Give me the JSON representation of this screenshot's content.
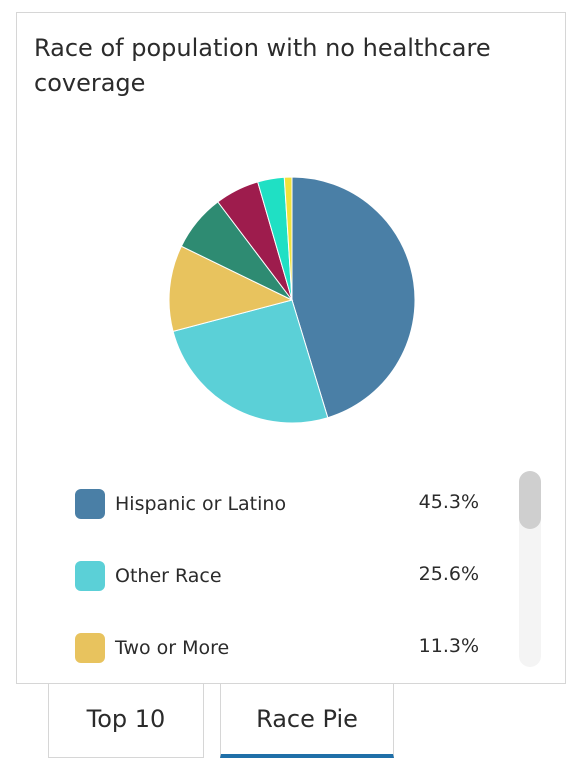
{
  "card": {
    "title": "Race of population with no healthcare coverage"
  },
  "chart_data": {
    "type": "pie",
    "title": "Race of population with no healthcare coverage",
    "slices": [
      {
        "label": "Hispanic or Latino",
        "value": 45.3,
        "display": "45.3%",
        "color": "#4a7fa6"
      },
      {
        "label": "Other Race",
        "value": 25.6,
        "display": "25.6%",
        "color": "#5bd0d7"
      },
      {
        "label": "Two or More",
        "value": 11.3,
        "display": "11.3%",
        "color": "#e8c35e"
      },
      {
        "label": "",
        "value": 7.5,
        "display": "",
        "color": "#2e8b72"
      },
      {
        "label": "",
        "value": 5.8,
        "display": "",
        "color": "#9e1c4d"
      },
      {
        "label": "",
        "value": 3.5,
        "display": "",
        "color": "#1fe0c4"
      },
      {
        "label": "",
        "value": 1.0,
        "display": "",
        "color": "#f0e23c"
      }
    ]
  },
  "legend": {
    "items": [
      {
        "label": "Hispanic or Latino",
        "value": "45.3%",
        "color": "#4a7fa6"
      },
      {
        "label": "Other Race",
        "value": "25.6%",
        "color": "#5bd0d7"
      },
      {
        "label": "Two or More",
        "value": "11.3%",
        "color": "#e8c35e"
      }
    ]
  },
  "tabs": {
    "top10_label": "Top 10",
    "racepie_label": "Race Pie",
    "active": "Race Pie",
    "active_color": "#1f6fa8"
  }
}
